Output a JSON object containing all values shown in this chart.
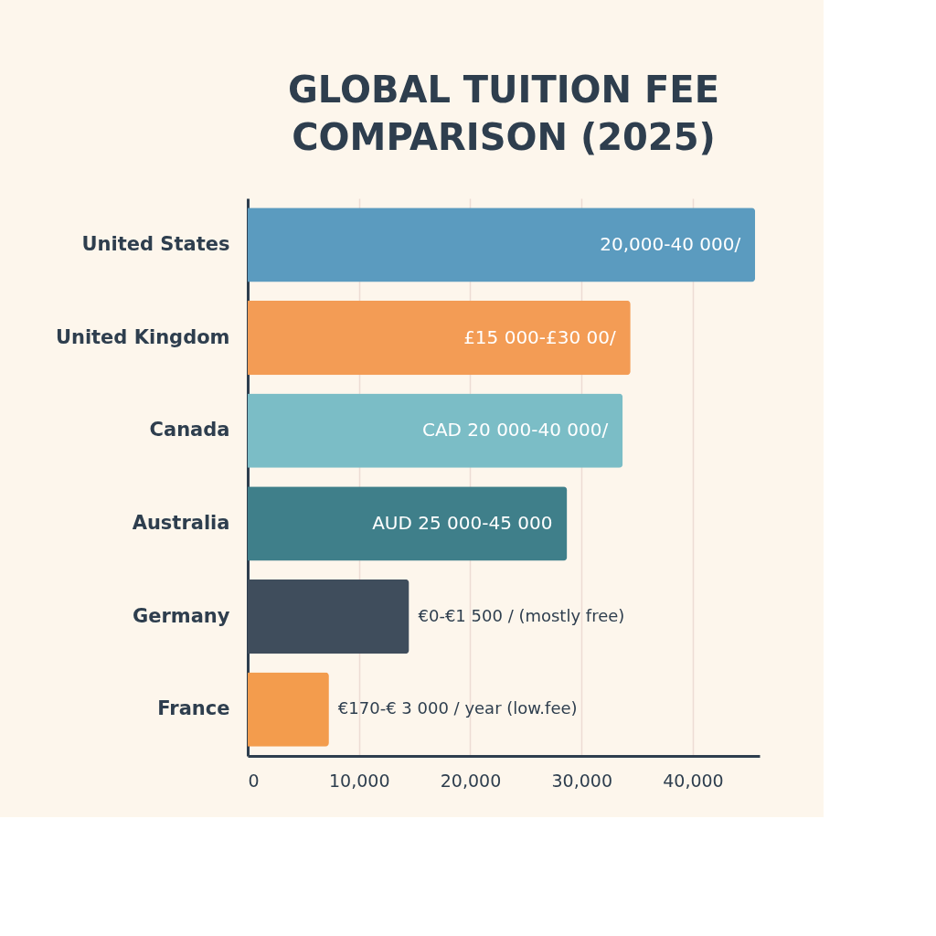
{
  "chart_data": {
    "type": "bar",
    "orientation": "horizontal",
    "title": "GLOBAL TUITION FEE COMPARISON (2025)",
    "categories": [
      "United States",
      "United Kingdom",
      "Canada",
      "Australia",
      "Germany",
      "France"
    ],
    "values": [
      45600,
      34400,
      33700,
      28700,
      14500,
      7300
    ],
    "colors": [
      "#5b9bbf",
      "#f39c55",
      "#7bbdc6",
      "#3f7f8a",
      "#3f4d5c",
      "#f39c4d"
    ],
    "annotations": [
      {
        "text": "20,000-40 000/",
        "x": 45600,
        "y": "United States"
      },
      {
        "text": "£15 000-£30 00/",
        "x": 34400,
        "y": "United Kingdom"
      },
      {
        "text": "CAD 20 000-40 000/",
        "x": 33700,
        "y": "Canada"
      },
      {
        "text": "AUD 25 000-45 000",
        "x": 28700,
        "y": "Australia"
      },
      {
        "text": "€0-€1 500 / (mostly free)",
        "x": 14500,
        "y": "Germany"
      },
      {
        "text": "€170-€ 3 000 / year (low.fee)",
        "x": 7300,
        "y": "France"
      }
    ],
    "xlim": [
      0,
      46000
    ],
    "xticks": [
      {
        "value": 0,
        "label": "0"
      },
      {
        "value": 10000,
        "label": "10,000"
      },
      {
        "value": 20000,
        "label": "20,000"
      },
      {
        "value": 30000,
        "label": "30,000"
      },
      {
        "value": 40000,
        "label": "40,000"
      }
    ],
    "grid": "x"
  }
}
